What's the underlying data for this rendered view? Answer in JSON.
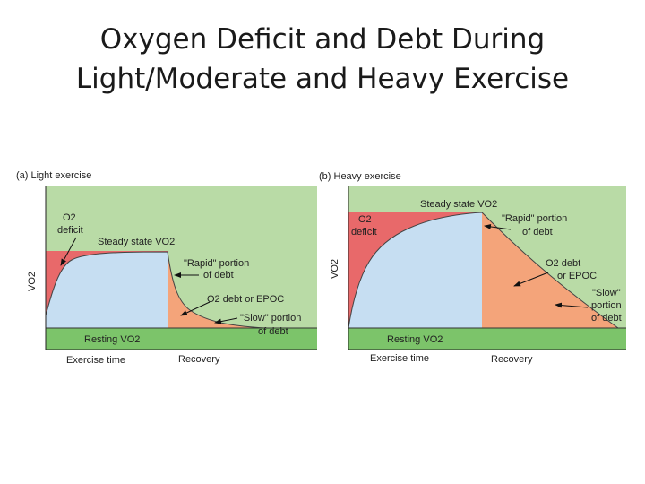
{
  "slide": {
    "title_line1": "Oxygen Deficit and Debt During",
    "title_line2": "Light/Moderate and Heavy Exercise"
  },
  "colors": {
    "deficit": "#e8696a",
    "resting": "#7cc46a",
    "background_green": "#b9dba6",
    "steady_state_area": "#c6def2",
    "debt": "#f4a47a"
  },
  "panels": [
    {
      "id": "a",
      "title": "(a) Light exercise",
      "y_axis": "VO2",
      "labels": {
        "o2": "O2",
        "deficit": "deficit",
        "steady_state": "Steady state VO2",
        "rapid_1": "\"Rapid\" portion",
        "rapid_2": "of debt",
        "debt_1": "O2  debt or EPOC",
        "slow_1": "\"Slow\" portion",
        "slow_2": "of debt",
        "resting": "Resting VO2",
        "exercise_time": "Exercise time",
        "recovery": "Recovery"
      }
    },
    {
      "id": "b",
      "title": "(b) Heavy exercise",
      "y_axis": "VO2",
      "labels": {
        "steady_state": "Steady state VO2",
        "o2": "O2",
        "deficit": "deficit",
        "rapid_1": "\"Rapid\" portion",
        "rapid_2": "of debt",
        "debt_1": "O2  debt",
        "debt_2": "or EPOC",
        "slow_1": "\"Slow\"",
        "slow_2": "portion",
        "slow_3": "of debt",
        "resting": "Resting VO2",
        "exercise_time": "Exercise time",
        "recovery": "Recovery"
      }
    }
  ]
}
